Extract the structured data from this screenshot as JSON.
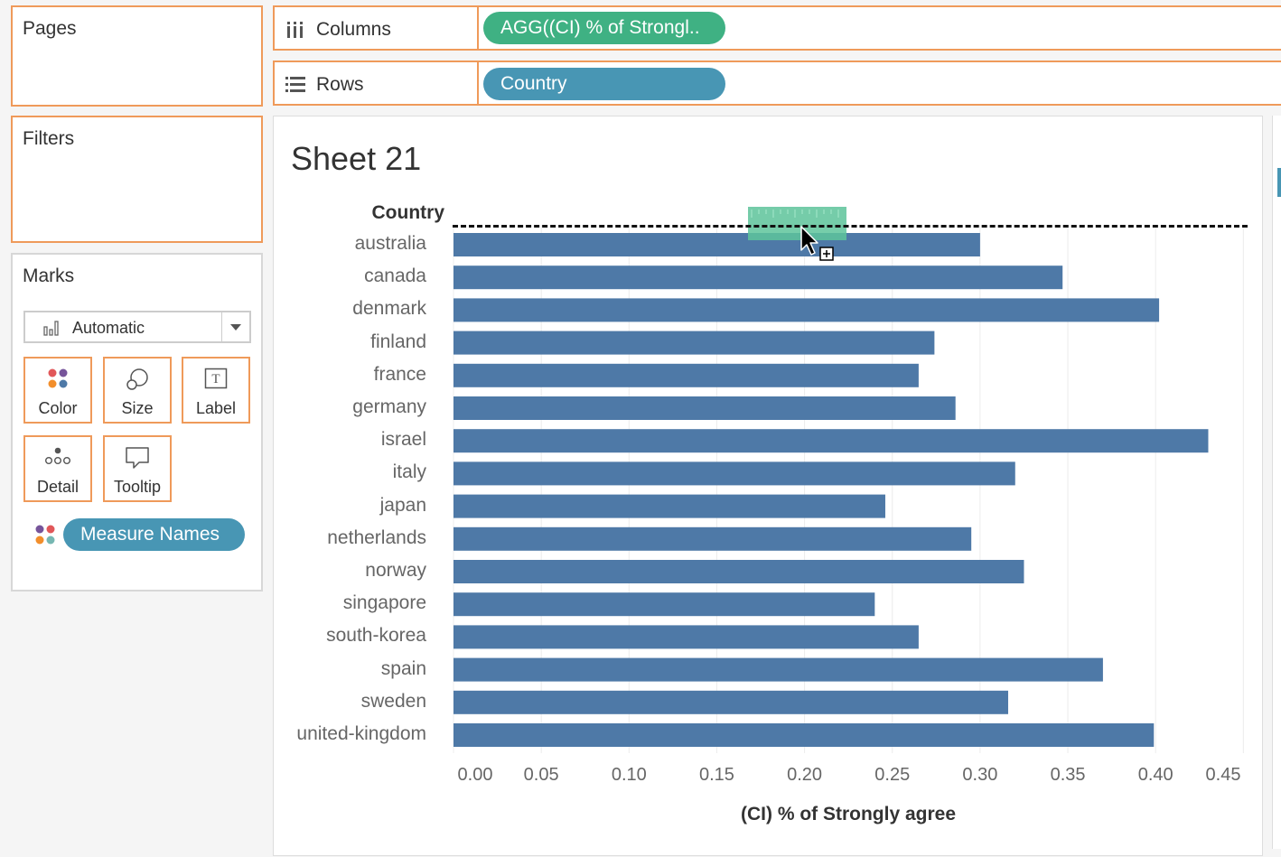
{
  "pages": {
    "title": "Pages"
  },
  "filters": {
    "title": "Filters"
  },
  "marks": {
    "title": "Marks",
    "mark_type": "Automatic",
    "buttons": {
      "color": "Color",
      "size": "Size",
      "label": "Label",
      "detail": "Detail",
      "tooltip": "Tooltip"
    },
    "color_pill": "Measure Names"
  },
  "shelves": {
    "columns": {
      "label": "Columns",
      "pill": "AGG((CI) % of Strongl.."
    },
    "rows": {
      "label": "Rows",
      "pill": "Country"
    }
  },
  "colors": {
    "accent_border": "#ef9a5a",
    "columns_pill": "#3fb183",
    "rows_pill": "#4896b4",
    "bar": "#4e79a7",
    "drop_target": "#5ec49b"
  },
  "sheet": {
    "title": "Sheet 21",
    "row_header": "Country"
  },
  "chart_data": {
    "type": "bar",
    "orientation": "horizontal",
    "categories": [
      "australia",
      "canada",
      "denmark",
      "finland",
      "france",
      "germany",
      "israel",
      "italy",
      "japan",
      "netherlands",
      "norway",
      "singapore",
      "south-korea",
      "spain",
      "sweden",
      "united-kingdom"
    ],
    "values": [
      0.3,
      0.347,
      0.402,
      0.274,
      0.265,
      0.286,
      0.43,
      0.32,
      0.246,
      0.295,
      0.325,
      0.24,
      0.265,
      0.37,
      0.316,
      0.399
    ],
    "xlabel": "(CI) % of Strongly agree",
    "ylabel": "Country",
    "xticks": [
      "0.00",
      "0.05",
      "0.10",
      "0.15",
      "0.20",
      "0.25",
      "0.30",
      "0.35",
      "0.40",
      "0.45"
    ],
    "xlim": [
      0,
      0.45
    ],
    "grid": true,
    "reference_line": "dashed black line at top (drag in progress)"
  }
}
